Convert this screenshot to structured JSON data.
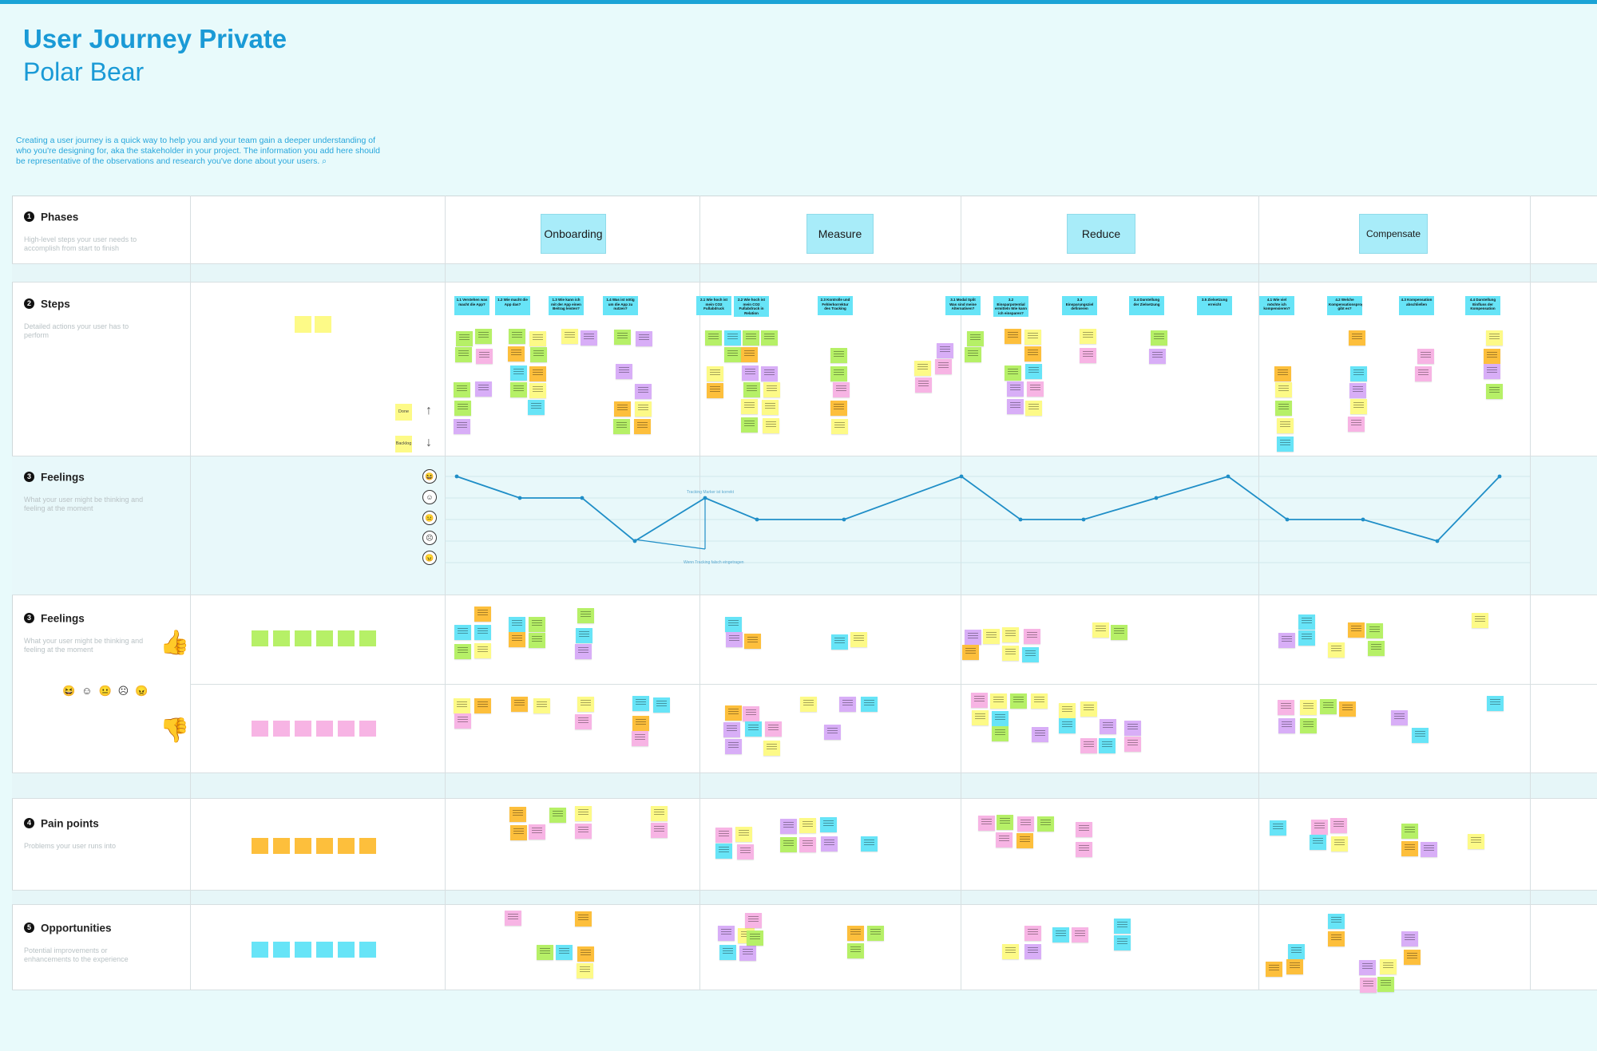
{
  "header": {
    "title": "User Journey Private",
    "subtitle": "Polar Bear",
    "description": "Creating a user journey is a quick way to help you and your team gain a deeper understanding of who you're designing for, aka the stakeholder in your project. The information you add here should be representative of the observations and research you've done about your users."
  },
  "sections": {
    "phases": {
      "num": "1",
      "label": "Phases",
      "desc": "High-level steps your user needs to accomplish from start to finish"
    },
    "steps": {
      "num": "2",
      "label": "Steps",
      "desc": "Detailed actions your user has to perform"
    },
    "feelings_curve": {
      "num": "3",
      "label": "Feelings",
      "desc": "What your user might be thinking and feeling at the moment"
    },
    "feelings": {
      "num": "3",
      "label": "Feelings",
      "desc": "What your user might be thinking and feeling at the moment"
    },
    "pain": {
      "num": "4",
      "label": "Pain points",
      "desc": "Problems your user runs into"
    },
    "opps": {
      "num": "5",
      "label": "Opportunities",
      "desc": "Potential improvements or enhancements to the experience"
    }
  },
  "phases": [
    "Onboarding",
    "Measure",
    "Reduce",
    "Compensate"
  ],
  "step_headers": [
    "1.1 Verstehen was macht die App?",
    "1.2 Wie macht die App das?",
    "1.3 Wie kann ich mit der App einen Beitrag leisten?",
    "1.4 Was ist nötig um die App zu nutzen?",
    "2.1 Wie hoch ist mein CO2 Fußabdruck",
    "2.2 Wie hoch ist mein CO2 Fußabdruck in Relation",
    "2.3 Kontrolle und Fehlerkorrektur des Tracking",
    "3.1 Modal Split Was sind meine Alternativen?",
    "3.2 Einsparpotential ermitteln Wie kann ich einsparen?",
    "3.3 Einsparungsziel definieren",
    "3.4 Darstellung der Zielsetzung",
    "3.5 Zielsetzung erreicht",
    "4.1 Wie viel möchte ich kompensieren?",
    "4.2 Welche Kompensationsprogramme gibt es?",
    "4.3 Kompensation abschließen",
    "4.4 Darstellung Einfluss der Kompensation"
  ],
  "legend": {
    "done": "Done",
    "backlog": "Backlog"
  },
  "annotations": {
    "peak": "Tracking Marker ist korrekt",
    "low": "Wenn Tracking falsch eingetragen"
  },
  "colors": {
    "accent": "#1aa3d6",
    "yellow": "#fdfa87",
    "cyan": "#67e4f7",
    "purple": "#d8aef7",
    "orange": "#fdbf3c",
    "green": "#b6f067",
    "pink": "#f7b4e4",
    "curve": "#1f8ec7"
  }
}
